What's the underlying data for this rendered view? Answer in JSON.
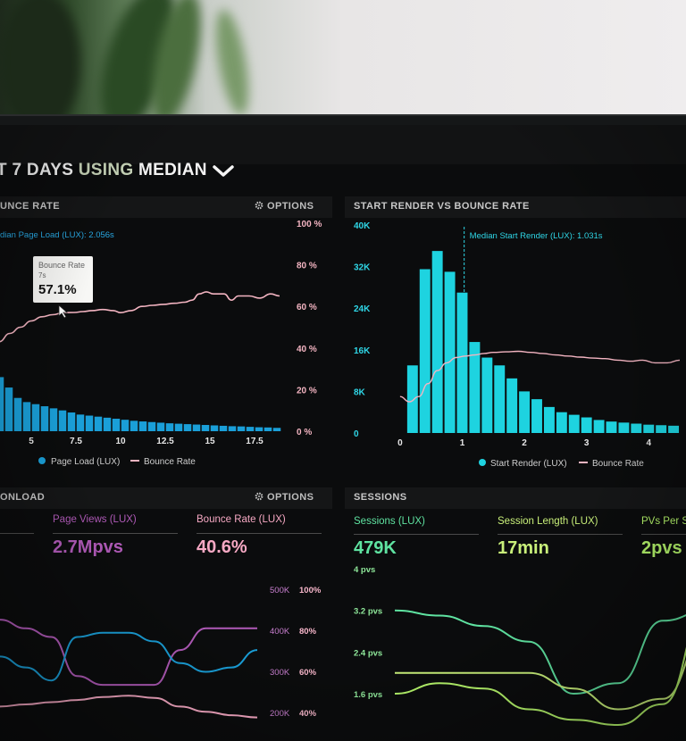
{
  "header": {
    "title_prefix": "T 7 DAYS ",
    "title_mid": "USING ",
    "title_end": "MEDIAN"
  },
  "panels": {
    "bounce": {
      "title": "UNCE RATE",
      "options_label": "OPTIONS",
      "median_annotation": "dian Page Load (LUX): 2.056s",
      "tooltip": {
        "title": "Bounce Rate",
        "sub": "7s",
        "value": "57.1%"
      },
      "legend": [
        "Page Load (LUX)",
        "Bounce Rate"
      ]
    },
    "render": {
      "title": "START RENDER VS BOUNCE RATE",
      "median_annotation": "Median Start Render (LUX): 1.031s",
      "legend": [
        "Start Render (LUX)",
        "Bounce Rate"
      ]
    },
    "download": {
      "title": "ONLOAD",
      "options_label": "OPTIONS",
      "metrics": [
        {
          "label": "Page Views (LUX)",
          "value": "2.7Mpvs"
        },
        {
          "label": "Bounce Rate (LUX)",
          "value": "40.6%"
        }
      ]
    },
    "sessions": {
      "title": "SESSIONS",
      "metrics": [
        {
          "label": "Sessions (LUX)",
          "value": "479K"
        },
        {
          "label": "Session Length (LUX)",
          "value": "17min"
        },
        {
          "label": "PVs Per S",
          "value": "2pvs"
        }
      ]
    }
  },
  "colors": {
    "bar_blue": "#1a9fd8",
    "bar_cyan": "#1ed3e0",
    "bounce_pink": "#f3b4c1",
    "purple": "#b05ab8",
    "pink": "#f7a9c4",
    "green": "#5fe3a1",
    "yellowgreen": "#c9f07a",
    "lime": "#b4f46a"
  },
  "chart_data": [
    {
      "id": "bounce",
      "type": "bar",
      "title": "",
      "x_ticks": [
        5,
        7.5,
        10,
        12.5,
        15,
        17.5
      ],
      "xlim": [
        3.25,
        19.25
      ],
      "y_right_ticks": [
        "100 %",
        "80 %",
        "60 %",
        "40 %",
        "20 %",
        "0 %"
      ],
      "ylim": [
        0,
        100
      ],
      "series": [
        {
          "name": "Page Load (LUX)",
          "x": [
            3.25,
            3.75,
            4.25,
            4.75,
            5.25,
            5.75,
            6.25,
            6.75,
            7.25,
            7.75,
            8.25,
            8.75,
            9.25,
            9.75,
            10.25,
            10.75,
            11.25,
            11.75,
            12.25,
            12.75,
            13.25,
            13.75,
            14.25,
            14.75,
            15.25,
            15.75,
            16.25,
            16.75,
            17.25,
            17.75,
            18.25,
            18.75
          ],
          "values": [
            26,
            21,
            16,
            14,
            13,
            12,
            11,
            10,
            9,
            8,
            7.5,
            7,
            6.5,
            6,
            5.5,
            5,
            4.7,
            4.4,
            4.1,
            3.8,
            3.6,
            3.4,
            3.2,
            3,
            2.8,
            2.6,
            2.4,
            2.3,
            2.1,
            1.9,
            1.8,
            1.6
          ]
        },
        {
          "name": "Bounce Rate",
          "x": [
            3.2,
            3.8,
            4.4,
            5.0,
            5.6,
            6.2,
            6.8,
            7.4,
            7.9,
            8.4,
            9.0,
            9.6,
            10.0,
            10.6,
            11.2,
            11.8,
            12.4,
            13.0,
            13.6,
            14.0,
            14.4,
            14.8,
            15.2,
            15.8,
            16.2,
            16.6,
            17.2,
            17.8,
            18.4,
            18.9
          ],
          "values": [
            43,
            47,
            50,
            53,
            55,
            56,
            57,
            57.1,
            57.5,
            58,
            58.5,
            58,
            57,
            58,
            60,
            60.5,
            61,
            61.5,
            62,
            63,
            66,
            67,
            66,
            66,
            63,
            65,
            65,
            64,
            66,
            65
          ]
        }
      ]
    },
    {
      "id": "render",
      "type": "bar",
      "title": "",
      "x_ticks": [
        0,
        1,
        2,
        3,
        4
      ],
      "xlim": [
        -0.2,
        4.6
      ],
      "y_ticks": [
        "40K",
        "32K",
        "24K",
        "16K",
        "8K",
        "0"
      ],
      "ylim": [
        0,
        40000
      ],
      "series": [
        {
          "name": "Start Render (LUX)",
          "x": [
            0.2,
            0.4,
            0.6,
            0.8,
            1.0,
            1.2,
            1.4,
            1.6,
            1.8,
            2.0,
            2.2,
            2.4,
            2.6,
            2.8,
            3.0,
            3.2,
            3.4,
            3.6,
            3.8,
            4.0,
            4.2,
            4.4
          ],
          "values": [
            13000,
            31500,
            35000,
            31000,
            27000,
            17500,
            14500,
            13000,
            10500,
            8000,
            6500,
            5000,
            4000,
            3500,
            3000,
            2500,
            2200,
            2000,
            1800,
            1600,
            1500,
            1400
          ]
        },
        {
          "name": "Bounce Rate",
          "x": [
            0.0,
            0.15,
            0.3,
            0.45,
            0.6,
            0.75,
            0.9,
            1.05,
            1.2,
            1.35,
            1.5,
            1.7,
            1.9,
            2.1,
            2.3,
            2.5,
            2.7,
            2.9,
            3.1,
            3.3,
            3.5,
            3.7,
            3.9,
            4.1,
            4.3,
            4.5
          ],
          "values": [
            7000,
            6000,
            7000,
            9500,
            12000,
            13500,
            14500,
            14800,
            15000,
            15300,
            15500,
            15600,
            15700,
            15500,
            15300,
            15000,
            14800,
            14600,
            14400,
            14300,
            14000,
            13800,
            14000,
            13500,
            13500,
            14000
          ]
        }
      ]
    },
    {
      "id": "download",
      "type": "line",
      "title": "",
      "y_ticks_left": [
        "500K",
        "400K",
        "300K",
        "200K"
      ],
      "y_ticks_right": [
        "100%",
        "80%",
        "60%",
        "40%"
      ],
      "series": [
        {
          "name": "Page Views (LUX)",
          "x": [
            0,
            1,
            2,
            3,
            4,
            5,
            6,
            7,
            8,
            9,
            10
          ],
          "values": [
            430,
            410,
            390,
            300,
            280,
            280,
            280,
            360,
            410,
            410,
            410
          ]
        },
        {
          "name": "Sessions",
          "x": [
            0,
            1,
            2,
            3,
            4,
            5,
            6,
            7,
            8,
            9,
            10
          ],
          "values": [
            345,
            320,
            290,
            390,
            400,
            400,
            380,
            330,
            310,
            320,
            360
          ]
        },
        {
          "name": "Bounce Rate (LUX)",
          "x": [
            0,
            1,
            2,
            3,
            4,
            5,
            6,
            7,
            8,
            9,
            10
          ],
          "values": [
            230,
            235,
            240,
            245,
            252,
            255,
            250,
            230,
            218,
            210,
            205
          ]
        }
      ]
    },
    {
      "id": "sessions",
      "type": "line",
      "title": "",
      "y_ticks": [
        "4 pvs",
        "3.2 pvs",
        "2.4 pvs",
        "1.6 pvs"
      ],
      "series": [
        {
          "name": "Sessions (LUX)",
          "x": [
            0,
            1,
            2,
            3,
            4,
            5,
            6,
            7
          ],
          "values": [
            3.2,
            3.1,
            2.9,
            2.6,
            1.6,
            1.8,
            3.0,
            3.2
          ]
        },
        {
          "name": "Session Length (LUX)",
          "x": [
            0,
            1,
            2,
            3,
            4,
            5,
            6,
            7
          ],
          "values": [
            2.0,
            2.0,
            2.0,
            2.0,
            1.7,
            1.3,
            1.5,
            2.8
          ]
        },
        {
          "name": "PVs Per S",
          "x": [
            0,
            1,
            2,
            3,
            4,
            5,
            6,
            7
          ],
          "values": [
            1.6,
            1.8,
            1.7,
            1.3,
            1.1,
            1.0,
            1.4,
            3.3
          ]
        }
      ]
    }
  ]
}
